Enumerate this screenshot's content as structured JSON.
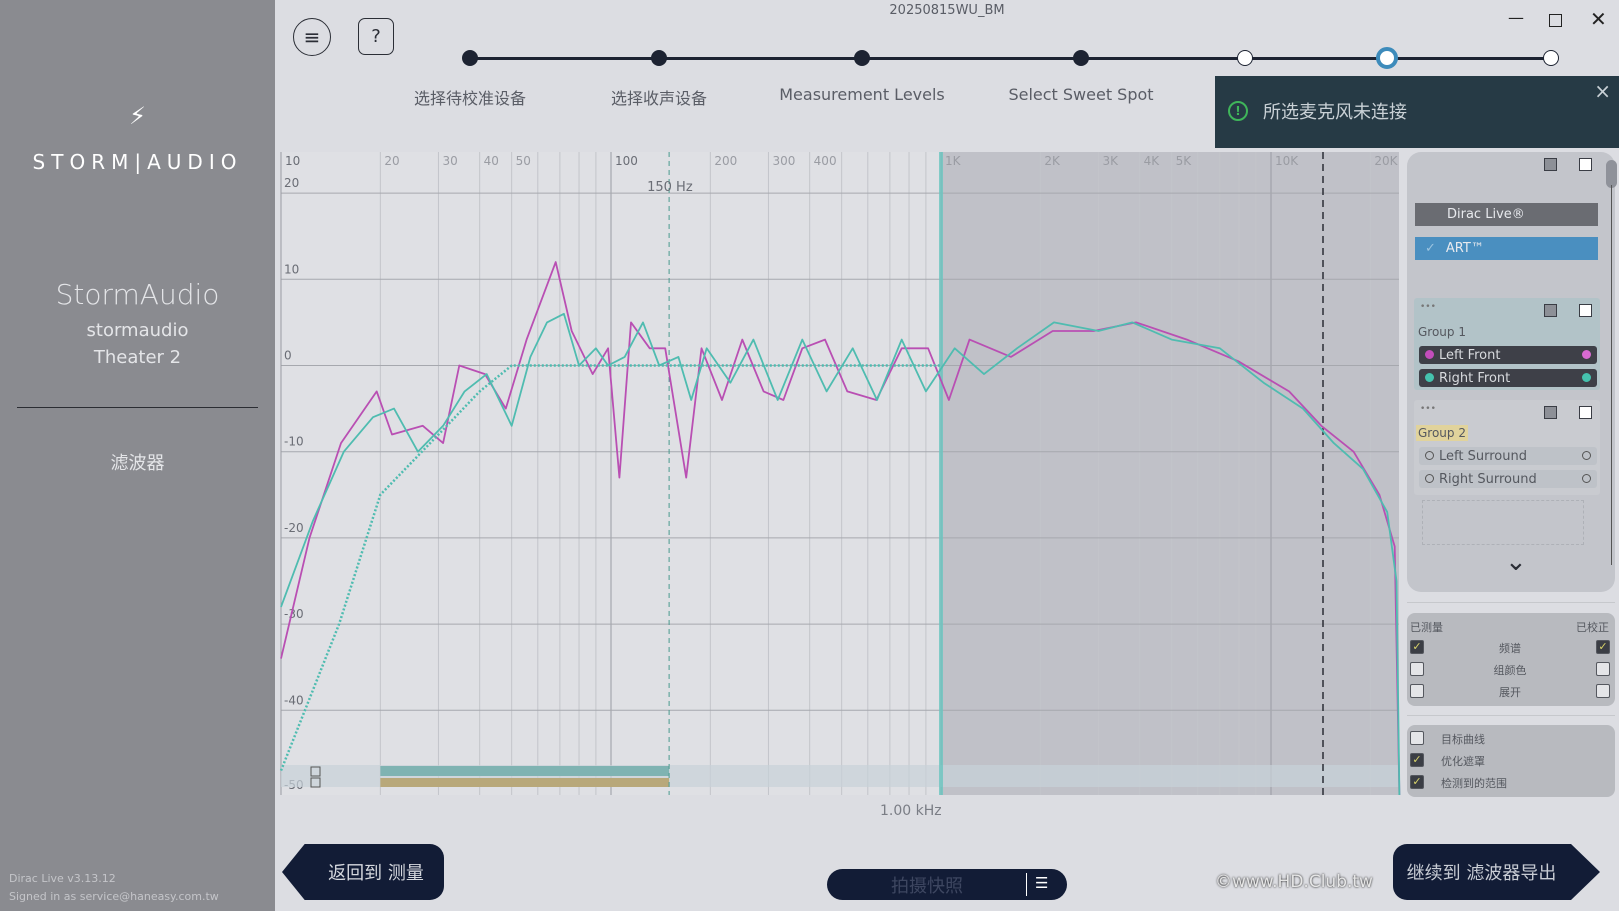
{
  "window": {
    "title": "20250815WU_BM",
    "minimize_icon": "minimize-icon",
    "maximize_icon": "maximize-icon",
    "close_icon": "close-icon"
  },
  "sidebar": {
    "logo_text": "STORM|AUDIO",
    "device_name": "StormAudio",
    "device_sub": "stormaudio",
    "device_room": "Theater 2",
    "nav_item": "滤波器",
    "version": "Dirac Live v3.13.12",
    "signed_in": "Signed in as service@haneasy.com.tw"
  },
  "toolbar": {
    "menu_icon": "≡",
    "help_icon": "?"
  },
  "stepper": {
    "steps": [
      {
        "label": "选择待校准设备",
        "state": "done"
      },
      {
        "label": "选择收声设备",
        "state": "done"
      },
      {
        "label": "Measurement Levels",
        "state": "done"
      },
      {
        "label": "Select Sweet Spot",
        "state": "done"
      },
      {
        "label": "",
        "state": "open"
      },
      {
        "label": "",
        "state": "current"
      },
      {
        "label": "",
        "state": "open"
      }
    ]
  },
  "toast": {
    "message": "所选麦克风未连接",
    "close": "×",
    "icon": "!"
  },
  "chart_data": {
    "type": "line",
    "x_scale": "log",
    "x_ticks": [
      "10",
      "20",
      "30",
      "40",
      "50",
      "100",
      "200",
      "300",
      "400",
      "1K",
      "2K",
      "3K",
      "4K",
      "5K",
      "10K",
      "20K"
    ],
    "y_ticks": [
      "20",
      "10",
      "0",
      "-10",
      "-20",
      "-30",
      "-40",
      "-50"
    ],
    "ylim": [
      -50,
      25
    ],
    "xlim": [
      10,
      24500
    ],
    "marker_label": "150 Hz",
    "cursor_label": "1.00 kHz",
    "colors": {
      "left_front": "#b94fb3",
      "right_front": "#4fbcb0",
      "target": "#4fbcb0",
      "range_bar": "#7fb3b2",
      "range_bar2": "#b8a87a"
    },
    "series": [
      {
        "name": "Left Front",
        "points": [
          [
            10,
            -34
          ],
          [
            12.2,
            -20
          ],
          [
            15.2,
            -9
          ],
          [
            19.5,
            -3
          ],
          [
            21.7,
            -8
          ],
          [
            26.9,
            -7
          ],
          [
            31,
            -9
          ],
          [
            34.7,
            0
          ],
          [
            41.5,
            -1
          ],
          [
            48,
            -5
          ],
          [
            55.5,
            3
          ],
          [
            68,
            12
          ],
          [
            76,
            4
          ],
          [
            88,
            -1
          ],
          [
            98,
            2
          ],
          [
            106,
            -13
          ],
          [
            115,
            5
          ],
          [
            131,
            2
          ],
          [
            146,
            2
          ],
          [
            169,
            -13
          ],
          [
            188,
            2
          ],
          [
            217,
            -4
          ],
          [
            250,
            3
          ],
          [
            290,
            -3
          ],
          [
            333,
            -4
          ],
          [
            380,
            2
          ],
          [
            445,
            3
          ],
          [
            520,
            -3
          ],
          [
            637,
            -4
          ],
          [
            760,
            2
          ],
          [
            914,
            2
          ],
          [
            1057,
            -4
          ],
          [
            1220,
            3
          ],
          [
            1630,
            1
          ],
          [
            2180,
            4
          ],
          [
            2900,
            4
          ],
          [
            3900,
            5
          ],
          [
            5560,
            3
          ],
          [
            7950,
            0.5
          ],
          [
            11350,
            -3
          ],
          [
            14200,
            -7
          ],
          [
            17800,
            -10
          ],
          [
            21300,
            -15
          ],
          [
            23700,
            -21
          ],
          [
            24500,
            -50
          ]
        ]
      },
      {
        "name": "Right Front",
        "points": [
          [
            10,
            -28
          ],
          [
            12.5,
            -18
          ],
          [
            15.5,
            -10
          ],
          [
            19,
            -6
          ],
          [
            22,
            -5
          ],
          [
            26,
            -10
          ],
          [
            31,
            -7
          ],
          [
            36,
            -3
          ],
          [
            42,
            -1
          ],
          [
            50,
            -7
          ],
          [
            57,
            1
          ],
          [
            64,
            5
          ],
          [
            72,
            6
          ],
          [
            80,
            0
          ],
          [
            90,
            2
          ],
          [
            98,
            0
          ],
          [
            110,
            1
          ],
          [
            125,
            5
          ],
          [
            140,
            0
          ],
          [
            160,
            1
          ],
          [
            175,
            -4
          ],
          [
            195,
            2
          ],
          [
            230,
            -2
          ],
          [
            270,
            3
          ],
          [
            320,
            -4
          ],
          [
            380,
            3
          ],
          [
            450,
            -3
          ],
          [
            540,
            2
          ],
          [
            640,
            -4
          ],
          [
            760,
            3
          ],
          [
            900,
            -3
          ],
          [
            1100,
            2
          ],
          [
            1350,
            -1
          ],
          [
            1700,
            2
          ],
          [
            2200,
            5
          ],
          [
            3000,
            4
          ],
          [
            3800,
            5
          ],
          [
            5000,
            3
          ],
          [
            7000,
            2
          ],
          [
            9500,
            -2
          ],
          [
            12500,
            -5
          ],
          [
            15500,
            -9
          ],
          [
            19000,
            -12
          ],
          [
            22500,
            -17
          ],
          [
            24000,
            -25
          ],
          [
            24500,
            -50
          ]
        ]
      },
      {
        "name": "Target",
        "points": [
          [
            10,
            -47
          ],
          [
            15,
            -30
          ],
          [
            20,
            -15
          ],
          [
            30,
            -8
          ],
          [
            40,
            -3
          ],
          [
            50,
            0
          ],
          [
            1000,
            0
          ]
        ]
      }
    ],
    "range_bars": [
      [
        20,
        150
      ],
      [
        20,
        150
      ]
    ]
  },
  "panel": {
    "dirac_label": "Dirac Live®",
    "art_label": "ART™",
    "art_check": "✓",
    "groups": [
      {
        "name": "Group 1",
        "more": "•••",
        "channels": [
          {
            "name": "Left Front",
            "color": "#c24dbb"
          },
          {
            "name": "Right Front",
            "color": "#45c2ae"
          }
        ]
      },
      {
        "name": "Group 2",
        "more": "•••",
        "channels": [
          {
            "name": "Left Surround",
            "color": ""
          },
          {
            "name": "Right Surround",
            "color": ""
          }
        ]
      }
    ],
    "expand_icon": "⌄"
  },
  "display_options": {
    "measured_header": "已测量",
    "corrected_header": "已校正",
    "rows": [
      {
        "label": "频谱",
        "measured": true,
        "corrected": true
      },
      {
        "label": "组颜色",
        "measured": false,
        "corrected": false
      },
      {
        "label": "展开",
        "measured": false,
        "corrected": false
      }
    ],
    "extra": [
      {
        "label": "目标曲线",
        "checked": false
      },
      {
        "label": "优化遮罩",
        "checked": true
      },
      {
        "label": "检测到的范围",
        "checked": true
      }
    ]
  },
  "footer": {
    "back_label": "返回到 测量",
    "snapshot_label": "拍摄快照",
    "continue_label": "继续到 滤波器导出",
    "watermark": "©www.HD.Club.tw"
  }
}
